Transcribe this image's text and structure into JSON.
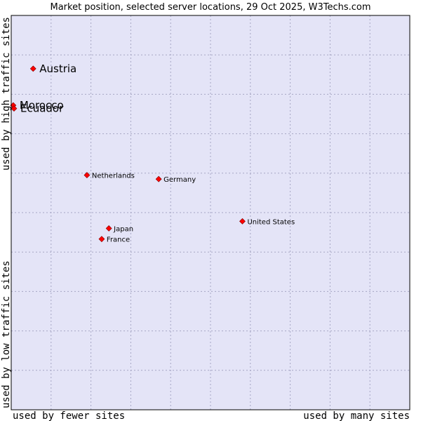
{
  "chart_data": {
    "type": "scatter",
    "title": "Market position, selected server locations, 29 Oct 2025, W3Techs.com",
    "xlabel_left": "used by fewer sites",
    "xlabel_right": "used by many sites",
    "ylabel_top": "used by high traffic sites",
    "ylabel_bottom": "used by low traffic sites",
    "xlim": [
      0,
      10
    ],
    "ylim": [
      0,
      10
    ],
    "grid": true,
    "colors": {
      "plot_background": "#e4e4f7",
      "grid": "#a6a6c4",
      "border": "#000000",
      "marker": "#ff0000",
      "marker_edge": "#800000"
    },
    "points": [
      {
        "name": "Austria",
        "x": 0.55,
        "y": 8.65,
        "emphasis": true
      },
      {
        "name": "Morocco",
        "x": 0.05,
        "y": 7.72,
        "emphasis": true
      },
      {
        "name": "Ecuador",
        "x": 0.07,
        "y": 7.64,
        "emphasis": true
      },
      {
        "name": "Netherlands",
        "x": 1.9,
        "y": 5.95,
        "emphasis": false
      },
      {
        "name": "Germany",
        "x": 3.7,
        "y": 5.85,
        "emphasis": false
      },
      {
        "name": "United States",
        "x": 5.8,
        "y": 4.78,
        "emphasis": false
      },
      {
        "name": "Japan",
        "x": 2.45,
        "y": 4.6,
        "emphasis": false
      },
      {
        "name": "France",
        "x": 2.27,
        "y": 4.33,
        "emphasis": false
      }
    ]
  }
}
